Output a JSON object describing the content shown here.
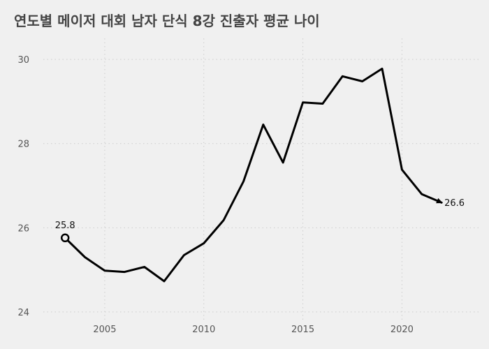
{
  "chart_data": {
    "type": "line",
    "title": "연도별 메이저 대회 남자 단식 8강 진출자 평균 나이",
    "xlabel": "",
    "ylabel": "",
    "x": [
      2003,
      2004,
      2005,
      2006,
      2007,
      2008,
      2009,
      2010,
      2011,
      2012,
      2013,
      2014,
      2015,
      2016,
      2017,
      2018,
      2019,
      2020,
      2021,
      2022
    ],
    "series": [
      {
        "values": [
          25.76,
          25.3,
          24.98,
          24.95,
          25.07,
          24.73,
          25.35,
          25.63,
          26.18,
          27.1,
          28.45,
          27.55,
          28.98,
          28.95,
          29.6,
          29.48,
          29.78,
          27.38,
          26.8,
          26.6
        ]
      }
    ],
    "xlim": [
      2001.9,
      2023.9
    ],
    "ylim": [
      23.75,
      30.5
    ],
    "x_ticks": [
      2005,
      2010,
      2015,
      2020
    ],
    "y_ticks": [
      24,
      26,
      28,
      30
    ],
    "grid": true,
    "annotations": [
      {
        "text": "25.8",
        "x": 2003,
        "y": 25.76,
        "marker": "open-circle"
      },
      {
        "text": "26.6",
        "x": 2022,
        "y": 26.6,
        "marker": "arrow"
      }
    ],
    "colors": {
      "background": "#f0f0f0",
      "line": "#000000",
      "grid": "#cccccc",
      "title": "#444444",
      "ticks": "#555555"
    }
  }
}
